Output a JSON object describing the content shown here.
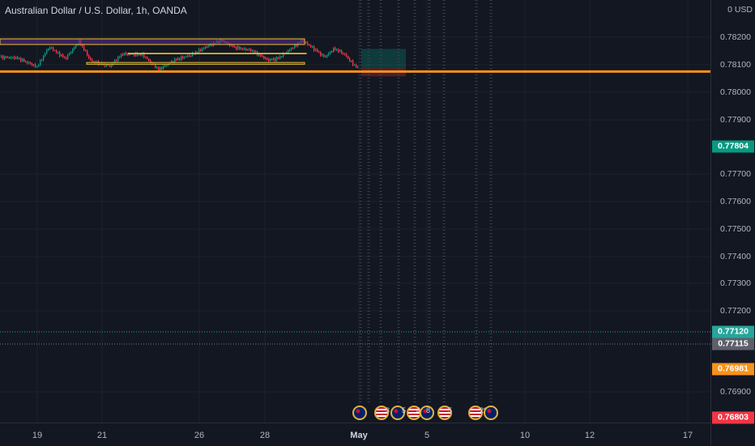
{
  "header": {
    "title": "Australian Dollar / U.S. Dollar, 1h, OANDA"
  },
  "price_axis": {
    "currency": "USD",
    "currency_value": "0",
    "ticks": [
      "0.78200",
      "0.78100",
      "0.78000",
      "0.77900",
      "0.77700",
      "0.77600",
      "0.77500",
      "0.77400",
      "0.77300",
      "0.77200",
      "0.76900"
    ],
    "badges": [
      {
        "label": "0.77804",
        "color": "#089981"
      },
      {
        "label": "0.77120",
        "color": "#26a69a"
      },
      {
        "label": "0.77115",
        "color": "#5d606b"
      },
      {
        "label": "0.76981",
        "color": "#f7931a"
      },
      {
        "label": "0.76803",
        "color": "#f23645"
      }
    ]
  },
  "time_axis": {
    "ticks": [
      {
        "label": "19",
        "bold": false
      },
      {
        "label": "21",
        "bold": false
      },
      {
        "label": "26",
        "bold": false
      },
      {
        "label": "28",
        "bold": false
      },
      {
        "label": "May",
        "bold": true
      },
      {
        "label": "5",
        "bold": false
      },
      {
        "label": "10",
        "bold": false
      },
      {
        "label": "12",
        "bold": false
      },
      {
        "label": "17",
        "bold": false
      }
    ]
  },
  "events": [
    {
      "icon": "australia-flag-icon",
      "count": ""
    },
    {
      "icon": "usa-flag-icon",
      "count": "3"
    },
    {
      "icon": "australia-flag-icon",
      "count": "5"
    },
    {
      "icon": "usa-flag-icon",
      "count": "4"
    },
    {
      "icon": "australia-flag-icon",
      "count": "8"
    },
    {
      "icon": "usa-flag-icon",
      "count": "5"
    },
    {
      "icon": "usa-flag-icon",
      "count": "29"
    },
    {
      "icon": "australia-flag-icon",
      "count": ""
    }
  ],
  "chart_data": {
    "type": "candlestick",
    "symbol": "AUD/USD",
    "interval": "1h",
    "ylim": [
      0.7675,
      0.7832
    ],
    "zones": [
      {
        "name": "supply-zone-top",
        "from": 0.7817,
        "to": 0.77965,
        "fill": "#5b2a82"
      },
      {
        "name": "resistance-zone-mid",
        "from": 0.77645,
        "to": 0.77625,
        "fill": "none"
      },
      {
        "name": "demand-zone-low",
        "from": 0.7731,
        "to": 0.77245,
        "fill": "#5b2a82"
      }
    ],
    "horizontal_line": {
      "price": 0.76981,
      "color": "#f7931a"
    },
    "position": {
      "entry": 0.7712,
      "target": 0.77804,
      "stop": 0.76803
    }
  }
}
